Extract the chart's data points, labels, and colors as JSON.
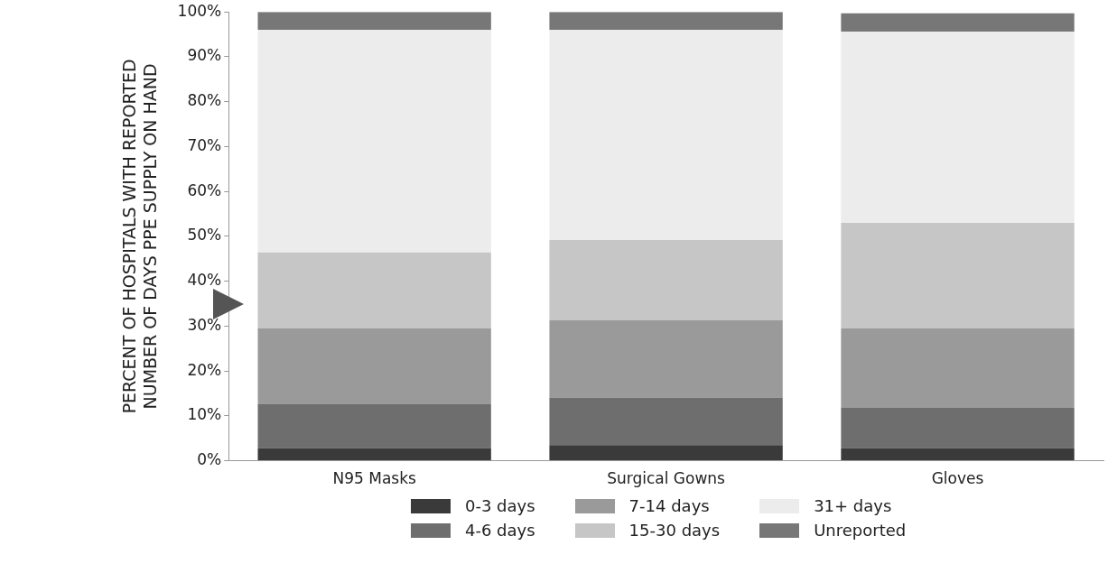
{
  "chart_data": {
    "type": "bar",
    "stacked": true,
    "ylabel": "PERCENT OF HOSPITALS WITH REPORTED\nNUMBER OF DAYS PPE SUPPLY ON HAND",
    "categories": [
      "N95 Masks",
      "Surgical Gowns",
      "Gloves"
    ],
    "series": [
      {
        "name": "0-3 days",
        "color": "#3a3a3a",
        "values": [
          2.8,
          3.5,
          2.8
        ]
      },
      {
        "name": "4-6 days",
        "color": "#6e6e6e",
        "values": [
          9.8,
          10.6,
          9.0
        ]
      },
      {
        "name": "7-14 days",
        "color": "#9a9a9a",
        "values": [
          16.9,
          17.2,
          17.7
        ]
      },
      {
        "name": "15-30 days",
        "color": "#c6c6c6",
        "values": [
          16.9,
          17.9,
          23.5
        ]
      },
      {
        "name": "31+ days",
        "color": "#ececec",
        "values": [
          49.6,
          46.8,
          42.6
        ]
      },
      {
        "name": "Unreported",
        "color": "#777777",
        "values": [
          4.0,
          4.0,
          4.1
        ]
      }
    ],
    "ylim": [
      0,
      100
    ],
    "yticks": [
      {
        "value": 0,
        "label": "0%"
      },
      {
        "value": 10,
        "label": "10%"
      },
      {
        "value": 20,
        "label": "20%"
      },
      {
        "value": 30,
        "label": "30%"
      },
      {
        "value": 40,
        "label": "40%"
      },
      {
        "value": 50,
        "label": "50%"
      },
      {
        "value": 60,
        "label": "60%"
      },
      {
        "value": 70,
        "label": "70%"
      },
      {
        "value": 80,
        "label": "80%"
      },
      {
        "value": 90,
        "label": "90%"
      },
      {
        "value": 100,
        "label": "100%"
      }
    ],
    "grid": false,
    "legend": "bottom"
  }
}
